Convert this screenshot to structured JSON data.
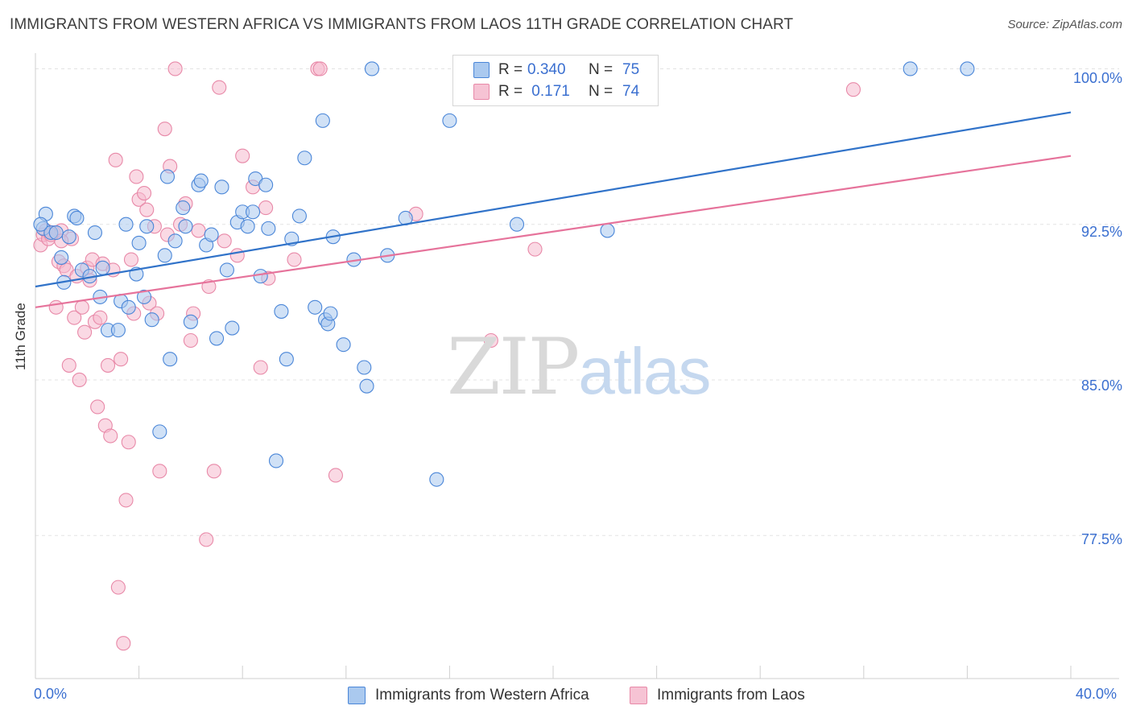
{
  "header": {
    "title": "IMMIGRANTS FROM WESTERN AFRICA VS IMMIGRANTS FROM LAOS 11TH GRADE CORRELATION CHART",
    "source": "Source: ZipAtlas.com"
  },
  "watermark": {
    "zip": "ZIP",
    "atlas": "atlas"
  },
  "colors": {
    "blue_fill": "#aac9ef",
    "blue_stroke": "#4a86d8",
    "blue_line": "#3173c9",
    "pink_fill": "#f6b9cd",
    "pink_stroke": "#e889a8",
    "pink_line": "#e6739b",
    "accent_text": "#3a6fd0",
    "grid": "#e3e3e3"
  },
  "stats": [
    {
      "r_label": "R =",
      "r_value": "0.340",
      "n_label": "N =",
      "n_value": "75",
      "series": "Immigrants from Western Africa"
    },
    {
      "r_label": "R =",
      "r_value": " 0.171",
      "n_label": "N =",
      "n_value": "74",
      "series": "Immigrants from Laos"
    }
  ],
  "legend": [
    {
      "label": "Immigrants from Western Africa"
    },
    {
      "label": "Immigrants from Laos"
    }
  ],
  "chart_data": {
    "type": "scatter",
    "title": "IMMIGRANTS FROM WESTERN AFRICA VS IMMIGRANTS FROM LAOS 11TH GRADE CORRELATION CHART",
    "xlabel": "",
    "ylabel": "11th Grade",
    "xlim": [
      0,
      40
    ],
    "ylim": [
      70.6,
      100.6
    ],
    "x_tick_labels": [
      {
        "value": 0,
        "label": "0.0%"
      },
      {
        "value": 40,
        "label": "40.0%"
      }
    ],
    "y_tick_labels": [
      {
        "value": 100.0,
        "label": "100.0%"
      },
      {
        "value": 92.5,
        "label": "92.5%"
      },
      {
        "value": 85.0,
        "label": "85.0%"
      },
      {
        "value": 77.5,
        "label": "77.5%"
      }
    ],
    "x_minor_ticks": [
      0,
      4,
      8,
      12,
      16,
      20,
      24,
      28,
      32,
      36,
      40
    ],
    "y_gridlines": [
      100.0,
      92.5,
      85.0,
      77.5
    ],
    "series": [
      {
        "name": "Immigrants from Western Africa",
        "color": "blue",
        "trend": {
          "x": [
            0,
            40
          ],
          "y": [
            89.5,
            97.9
          ]
        },
        "points": [
          [
            0.3,
            92.3
          ],
          [
            0.4,
            93.0
          ],
          [
            0.6,
            92.1
          ],
          [
            0.8,
            92.1
          ],
          [
            1.0,
            90.9
          ],
          [
            1.1,
            89.7
          ],
          [
            1.3,
            91.9
          ],
          [
            1.5,
            92.9
          ],
          [
            1.6,
            92.8
          ],
          [
            1.8,
            90.3
          ],
          [
            2.1,
            90.0
          ],
          [
            2.3,
            92.1
          ],
          [
            2.5,
            89.0
          ],
          [
            2.6,
            90.4
          ],
          [
            2.8,
            87.4
          ],
          [
            3.2,
            87.4
          ],
          [
            3.3,
            88.8
          ],
          [
            3.5,
            92.5
          ],
          [
            3.6,
            88.5
          ],
          [
            3.9,
            90.1
          ],
          [
            4.0,
            91.6
          ],
          [
            4.2,
            89.0
          ],
          [
            4.3,
            92.4
          ],
          [
            4.5,
            87.9
          ],
          [
            4.8,
            82.5
          ],
          [
            5.0,
            91.0
          ],
          [
            5.1,
            94.8
          ],
          [
            5.2,
            86.0
          ],
          [
            5.4,
            91.7
          ],
          [
            5.7,
            93.3
          ],
          [
            5.8,
            92.4
          ],
          [
            6.0,
            87.8
          ],
          [
            6.3,
            94.4
          ],
          [
            6.4,
            94.6
          ],
          [
            6.6,
            91.5
          ],
          [
            6.8,
            92.0
          ],
          [
            7.0,
            87.0
          ],
          [
            7.2,
            94.3
          ],
          [
            7.4,
            90.3
          ],
          [
            7.6,
            87.5
          ],
          [
            7.8,
            92.6
          ],
          [
            8.0,
            93.1
          ],
          [
            8.2,
            92.4
          ],
          [
            8.4,
            93.1
          ],
          [
            8.5,
            94.7
          ],
          [
            8.7,
            90.0
          ],
          [
            8.9,
            94.4
          ],
          [
            9.0,
            92.3
          ],
          [
            9.3,
            81.1
          ],
          [
            9.5,
            88.3
          ],
          [
            9.7,
            86.0
          ],
          [
            9.9,
            91.8
          ],
          [
            10.2,
            92.9
          ],
          [
            10.4,
            95.7
          ],
          [
            10.8,
            88.5
          ],
          [
            11.1,
            97.5
          ],
          [
            11.5,
            91.9
          ],
          [
            11.2,
            87.9
          ],
          [
            11.3,
            87.7
          ],
          [
            11.4,
            88.2
          ],
          [
            11.9,
            86.7
          ],
          [
            12.3,
            90.8
          ],
          [
            12.7,
            85.6
          ],
          [
            12.8,
            84.7
          ],
          [
            13.0,
            100.0
          ],
          [
            13.6,
            91.0
          ],
          [
            14.3,
            92.8
          ],
          [
            15.5,
            80.2
          ],
          [
            16.0,
            97.5
          ],
          [
            17.2,
            100.0
          ],
          [
            18.6,
            92.5
          ],
          [
            22.1,
            92.2
          ],
          [
            33.8,
            100.0
          ],
          [
            36.0,
            100.0
          ],
          [
            0.2,
            92.5
          ]
        ]
      },
      {
        "name": "Immigrants from Laos",
        "color": "pink",
        "trend": {
          "x": [
            0,
            40
          ],
          "y": [
            88.5,
            95.8
          ]
        },
        "points": [
          [
            0.2,
            91.5
          ],
          [
            0.3,
            92.0
          ],
          [
            0.4,
            92.2
          ],
          [
            0.5,
            91.8
          ],
          [
            0.7,
            92.1
          ],
          [
            0.8,
            88.5
          ],
          [
            0.9,
            90.7
          ],
          [
            1.0,
            92.2
          ],
          [
            1.1,
            90.5
          ],
          [
            1.2,
            90.3
          ],
          [
            1.3,
            85.7
          ],
          [
            1.4,
            91.8
          ],
          [
            1.5,
            88.0
          ],
          [
            1.6,
            90.0
          ],
          [
            1.7,
            85.0
          ],
          [
            1.8,
            88.5
          ],
          [
            1.9,
            87.3
          ],
          [
            2.0,
            90.4
          ],
          [
            2.2,
            90.8
          ],
          [
            2.3,
            87.8
          ],
          [
            2.4,
            83.7
          ],
          [
            2.5,
            88.0
          ],
          [
            2.6,
            90.6
          ],
          [
            2.7,
            82.8
          ],
          [
            2.8,
            85.7
          ],
          [
            2.9,
            82.3
          ],
          [
            3.0,
            90.3
          ],
          [
            3.1,
            95.6
          ],
          [
            3.2,
            75.0
          ],
          [
            3.3,
            86.0
          ],
          [
            3.4,
            72.3
          ],
          [
            3.5,
            79.2
          ],
          [
            3.6,
            82.0
          ],
          [
            3.7,
            90.8
          ],
          [
            3.8,
            88.2
          ],
          [
            3.9,
            94.8
          ],
          [
            4.0,
            93.7
          ],
          [
            4.2,
            94.0
          ],
          [
            4.3,
            93.2
          ],
          [
            4.4,
            88.7
          ],
          [
            4.6,
            92.4
          ],
          [
            4.8,
            80.6
          ],
          [
            5.0,
            97.1
          ],
          [
            5.1,
            92.0
          ],
          [
            5.2,
            95.3
          ],
          [
            5.4,
            100.0
          ],
          [
            5.6,
            92.5
          ],
          [
            5.8,
            93.5
          ],
          [
            6.0,
            86.9
          ],
          [
            6.1,
            88.2
          ],
          [
            6.3,
            92.2
          ],
          [
            6.6,
            77.3
          ],
          [
            6.7,
            89.5
          ],
          [
            6.9,
            80.6
          ],
          [
            7.1,
            99.1
          ],
          [
            7.3,
            91.7
          ],
          [
            7.8,
            91.0
          ],
          [
            8.0,
            95.8
          ],
          [
            8.4,
            94.3
          ],
          [
            8.7,
            85.6
          ],
          [
            8.9,
            93.3
          ],
          [
            9.0,
            89.9
          ],
          [
            10.0,
            90.8
          ],
          [
            10.9,
            100.0
          ],
          [
            11.0,
            100.0
          ],
          [
            11.6,
            80.4
          ],
          [
            14.7,
            93.0
          ],
          [
            17.6,
            86.9
          ],
          [
            19.3,
            91.3
          ],
          [
            31.6,
            99.0
          ],
          [
            4.7,
            88.2
          ],
          [
            2.1,
            89.8
          ],
          [
            1.0,
            91.7
          ],
          [
            0.6,
            92.0
          ]
        ]
      }
    ]
  }
}
